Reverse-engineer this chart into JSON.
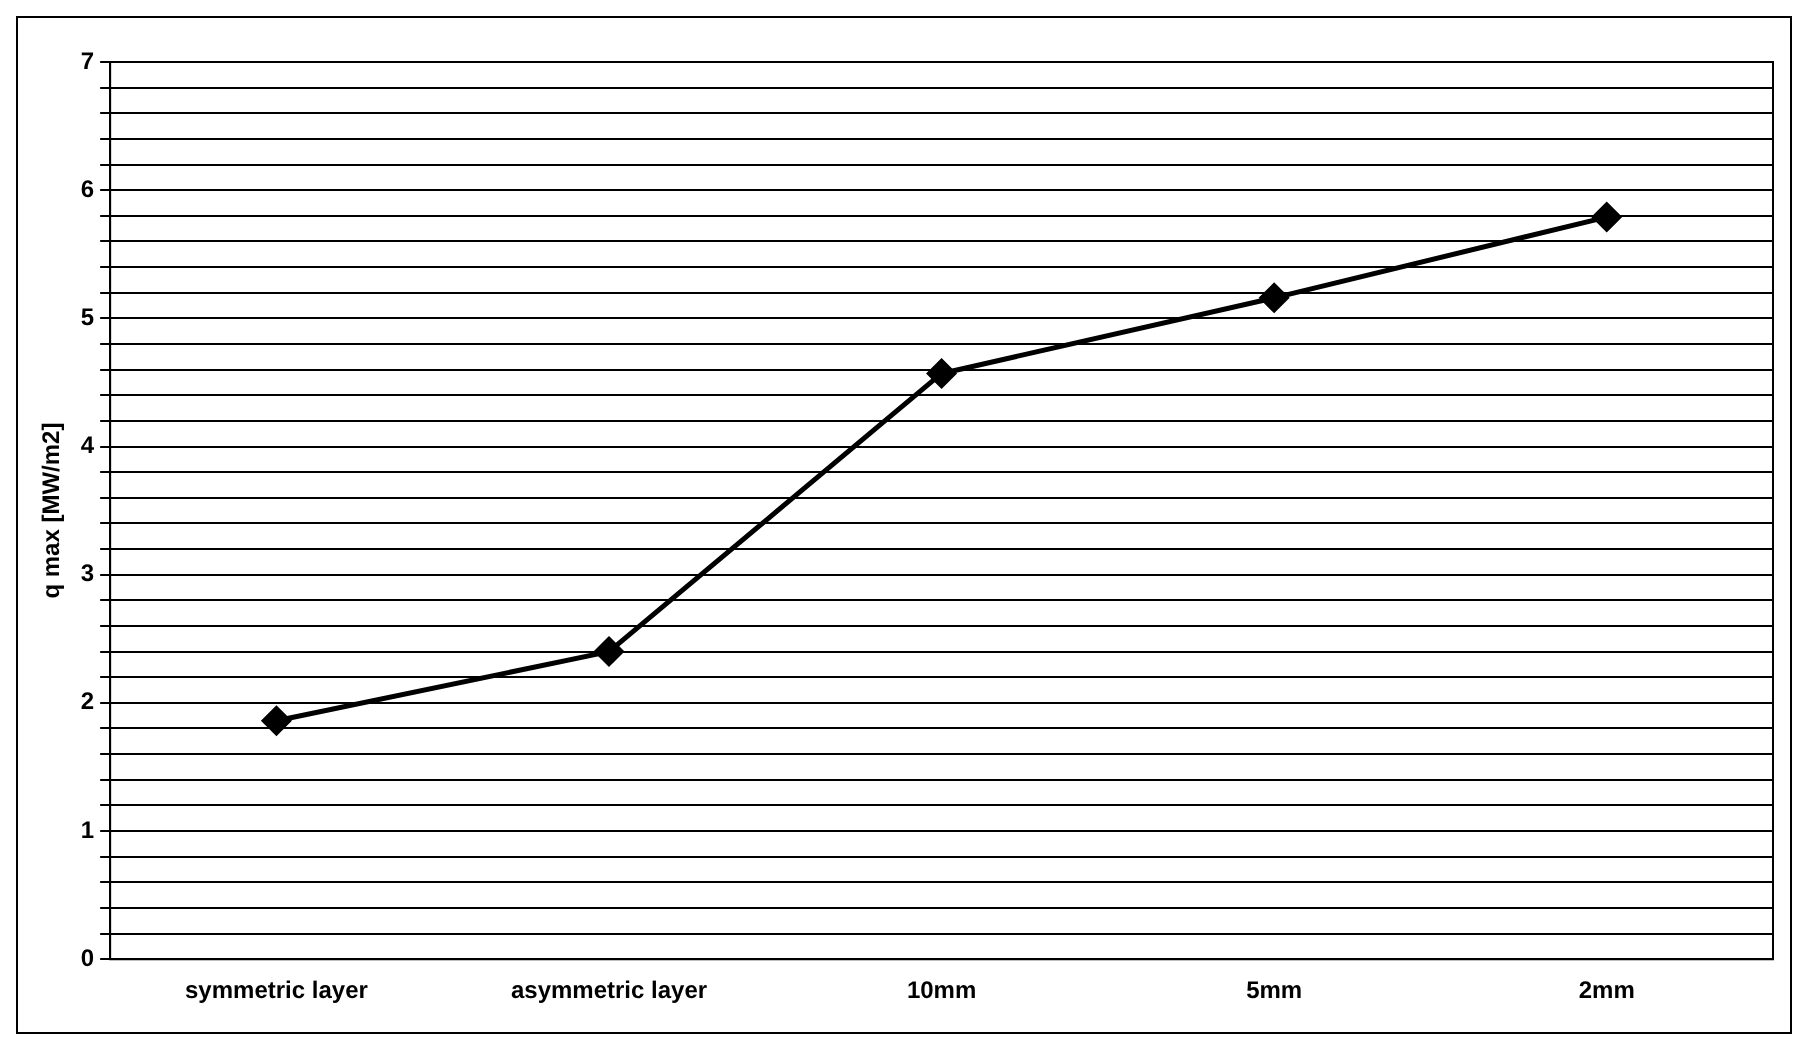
{
  "chart_data": {
    "type": "line",
    "ylabel": "q max [MW/m2]",
    "categories": [
      "symmetric layer",
      "asymmetric layer",
      "10mm",
      "5mm",
      "2mm"
    ],
    "series": [
      {
        "color": "#000000",
        "values": [
          1.86,
          2.4,
          4.57,
          5.16,
          5.79
        ]
      }
    ],
    "ylim": [
      0,
      7
    ],
    "yticks": [
      0,
      {
        "value": 0.2,
        "label": null
      },
      {
        "value": 0.4,
        "label": null
      },
      {
        "value": 0.6,
        "label": null
      },
      {
        "value": 0.8,
        "label": null
      },
      1,
      {
        "value": 1.2,
        "label": null
      },
      {
        "value": 1.4,
        "label": null
      },
      {
        "value": 1.6,
        "label": null
      },
      {
        "value": 1.8,
        "label": null
      },
      2,
      {
        "value": 2.2,
        "label": null
      },
      {
        "value": 2.4,
        "label": null
      },
      {
        "value": 2.6,
        "label": null
      },
      {
        "value": 2.8,
        "label": null
      },
      3,
      {
        "value": 3.2,
        "label": null
      },
      {
        "value": 3.4,
        "label": null
      },
      {
        "value": 3.6,
        "label": null
      },
      {
        "value": 3.8,
        "label": null
      },
      4,
      {
        "value": 4.2,
        "label": null
      },
      {
        "value": 4.4,
        "label": null
      },
      {
        "value": 4.6,
        "label": null
      },
      {
        "value": 4.8,
        "label": null
      },
      5,
      {
        "value": 5.2,
        "label": null
      },
      {
        "value": 5.4,
        "label": null
      },
      {
        "value": 5.6,
        "label": null
      },
      {
        "value": 5.8,
        "label": null
      },
      6,
      {
        "value": 6.2,
        "label": null
      },
      {
        "value": 6.4,
        "label": null
      },
      {
        "value": 6.6,
        "label": null
      },
      {
        "value": 6.8,
        "label": null
      },
      7
    ],
    "grid": "y",
    "legend": false,
    "marker": "diamond",
    "line_style": "solid"
  }
}
